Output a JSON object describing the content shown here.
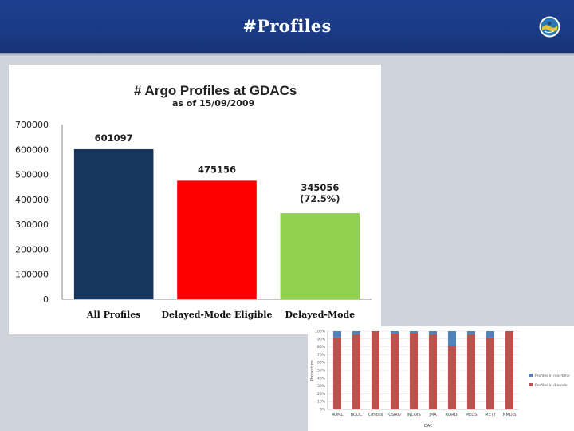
{
  "slide": {
    "title": "#Profiles",
    "logo_icon": "argo-logo-icon",
    "header_color": "#1f3f8f"
  },
  "chart_data": [
    {
      "type": "bar",
      "title": "# Argo Profiles at GDACs",
      "subtitle": "as of 15/09/2009",
      "categories": [
        "All Profiles",
        "Delayed-Mode Eligible",
        "Delayed-Mode"
      ],
      "values": [
        601097,
        475156,
        345056
      ],
      "value_labels": [
        "601097",
        "475156",
        "345056"
      ],
      "extra_labels": [
        "",
        "",
        "(72.5%)"
      ],
      "colors": [
        "#17375e",
        "#ff0000",
        "#92d050"
      ],
      "ylim": [
        0,
        700000
      ],
      "yticks": [
        "0",
        "100000",
        "200000",
        "300000",
        "400000",
        "500000",
        "600000",
        "700000"
      ],
      "grid": false,
      "legend": "none"
    },
    {
      "type": "bar",
      "stacked": true,
      "ylabel": "Proportion",
      "xlabel": "DAC",
      "categories": [
        "AOML",
        "BODC",
        "Coriolis",
        "CSIRO",
        "INCOIS",
        "JMA",
        "KORDI",
        "MEDS",
        "METT",
        "NMDIS"
      ],
      "series": [
        {
          "name": "Profiles in real-time",
          "color": "#4f81bd",
          "values": [
            8,
            4,
            0,
            3,
            2,
            4,
            19,
            4,
            9,
            0
          ]
        },
        {
          "name": "Profiles in d-mode",
          "color": "#c0504d",
          "values": [
            92,
            96,
            100,
            97,
            98,
            96,
            81,
            96,
            91,
            100
          ]
        }
      ],
      "ylim": [
        0,
        100
      ],
      "yticks": [
        "0%",
        "10%",
        "20%",
        "30%",
        "40%",
        "50%",
        "60%",
        "70%",
        "80%",
        "90%",
        "100%"
      ],
      "legend": "right"
    }
  ]
}
